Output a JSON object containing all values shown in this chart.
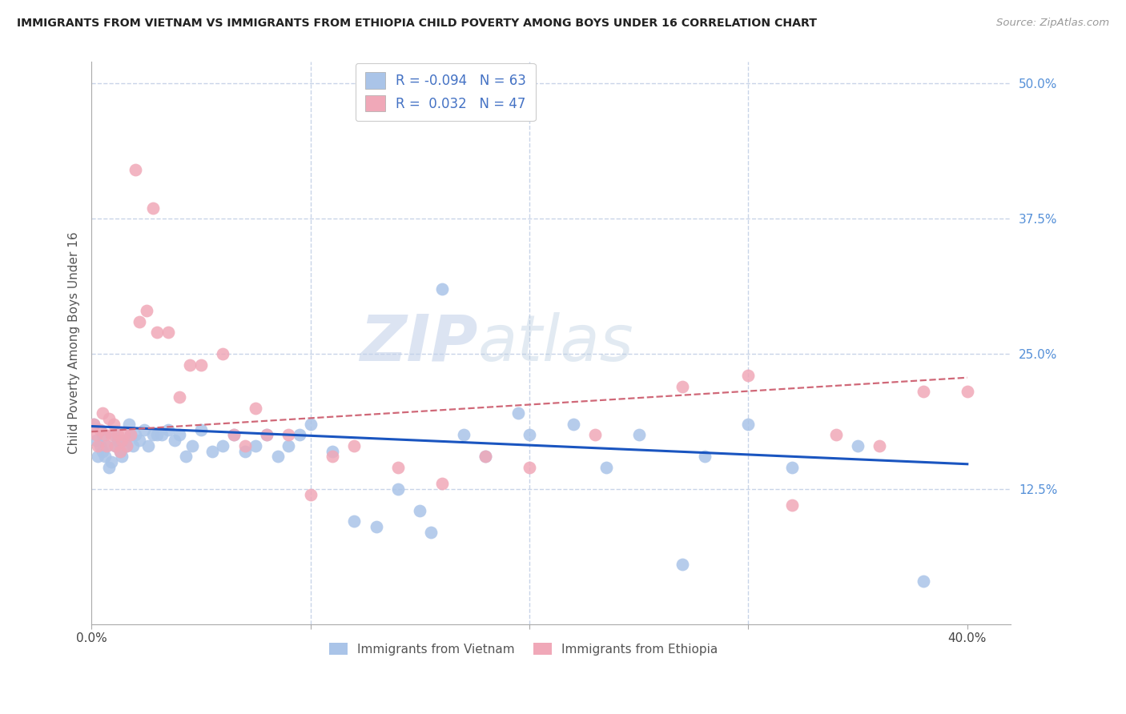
{
  "title": "IMMIGRANTS FROM VIETNAM VS IMMIGRANTS FROM ETHIOPIA CHILD POVERTY AMONG BOYS UNDER 16 CORRELATION CHART",
  "source": "Source: ZipAtlas.com",
  "ylabel": "Child Poverty Among Boys Under 16",
  "xlim": [
    0.0,
    0.42
  ],
  "ylim": [
    0.0,
    0.52
  ],
  "ytick_labels_right": [
    "12.5%",
    "25.0%",
    "37.5%",
    "50.0%"
  ],
  "ytick_vals_right": [
    0.125,
    0.25,
    0.375,
    0.5
  ],
  "watermark_zip": "ZIP",
  "watermark_atlas": "atlas",
  "legend_R_vietnam": "-0.094",
  "legend_N_vietnam": "63",
  "legend_R_ethiopia": "0.032",
  "legend_N_ethiopia": "47",
  "color_vietnam": "#aac4e8",
  "color_ethiopia": "#f0a8b8",
  "line_color_vietnam": "#1a55c0",
  "line_color_ethiopia": "#d06878",
  "background_color": "#ffffff",
  "grid_color": "#c8d4e8",
  "vietnam_x": [
    0.001,
    0.002,
    0.003,
    0.004,
    0.005,
    0.005,
    0.006,
    0.007,
    0.008,
    0.009,
    0.01,
    0.011,
    0.012,
    0.013,
    0.014,
    0.015,
    0.016,
    0.017,
    0.018,
    0.019,
    0.02,
    0.022,
    0.024,
    0.026,
    0.028,
    0.03,
    0.032,
    0.035,
    0.038,
    0.04,
    0.043,
    0.046,
    0.05,
    0.055,
    0.06,
    0.065,
    0.07,
    0.075,
    0.08,
    0.085,
    0.09,
    0.095,
    0.1,
    0.11,
    0.12,
    0.13,
    0.14,
    0.15,
    0.16,
    0.17,
    0.18,
    0.2,
    0.22,
    0.25,
    0.28,
    0.3,
    0.32,
    0.35,
    0.27,
    0.195,
    0.155,
    0.235,
    0.38
  ],
  "vietnam_y": [
    0.185,
    0.17,
    0.155,
    0.165,
    0.175,
    0.16,
    0.155,
    0.165,
    0.145,
    0.15,
    0.175,
    0.165,
    0.17,
    0.16,
    0.155,
    0.17,
    0.165,
    0.185,
    0.175,
    0.165,
    0.175,
    0.17,
    0.18,
    0.165,
    0.175,
    0.175,
    0.175,
    0.18,
    0.17,
    0.175,
    0.155,
    0.165,
    0.18,
    0.16,
    0.165,
    0.175,
    0.16,
    0.165,
    0.175,
    0.155,
    0.165,
    0.175,
    0.185,
    0.16,
    0.095,
    0.09,
    0.125,
    0.105,
    0.31,
    0.175,
    0.155,
    0.175,
    0.185,
    0.175,
    0.155,
    0.185,
    0.145,
    0.165,
    0.055,
    0.195,
    0.085,
    0.145,
    0.04
  ],
  "ethiopia_x": [
    0.001,
    0.002,
    0.003,
    0.004,
    0.005,
    0.006,
    0.007,
    0.008,
    0.009,
    0.01,
    0.011,
    0.012,
    0.013,
    0.014,
    0.015,
    0.016,
    0.018,
    0.02,
    0.022,
    0.025,
    0.028,
    0.03,
    0.035,
    0.04,
    0.045,
    0.05,
    0.06,
    0.065,
    0.07,
    0.075,
    0.08,
    0.09,
    0.1,
    0.11,
    0.12,
    0.14,
    0.16,
    0.18,
    0.2,
    0.23,
    0.27,
    0.3,
    0.32,
    0.34,
    0.36,
    0.38,
    0.4
  ],
  "ethiopia_y": [
    0.185,
    0.175,
    0.165,
    0.18,
    0.195,
    0.175,
    0.165,
    0.19,
    0.175,
    0.185,
    0.165,
    0.175,
    0.16,
    0.17,
    0.175,
    0.165,
    0.175,
    0.42,
    0.28,
    0.29,
    0.385,
    0.27,
    0.27,
    0.21,
    0.24,
    0.24,
    0.25,
    0.175,
    0.165,
    0.2,
    0.175,
    0.175,
    0.12,
    0.155,
    0.165,
    0.145,
    0.13,
    0.155,
    0.145,
    0.175,
    0.22,
    0.23,
    0.11,
    0.175,
    0.165,
    0.215,
    0.215
  ],
  "viet_line_x0": 0.0,
  "viet_line_x1": 0.4,
  "viet_line_y0": 0.183,
  "viet_line_y1": 0.148,
  "eth_line_x0": 0.0,
  "eth_line_x1": 0.4,
  "eth_line_y0": 0.178,
  "eth_line_y1": 0.228
}
